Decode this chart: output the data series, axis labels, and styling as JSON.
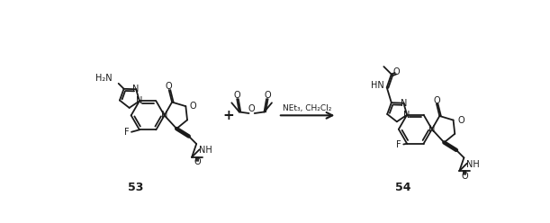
{
  "bg_color": "#ffffff",
  "fig_width": 6.11,
  "fig_height": 2.48,
  "dpi": 100,
  "arrow_text_line1": "NEt₃, CH₂Cl₂",
  "label_53": "53",
  "label_54": "54",
  "plus_sign": "+",
  "line_color": "#1a1a1a",
  "text_color": "#1a1a1a",
  "lw": 1.3
}
